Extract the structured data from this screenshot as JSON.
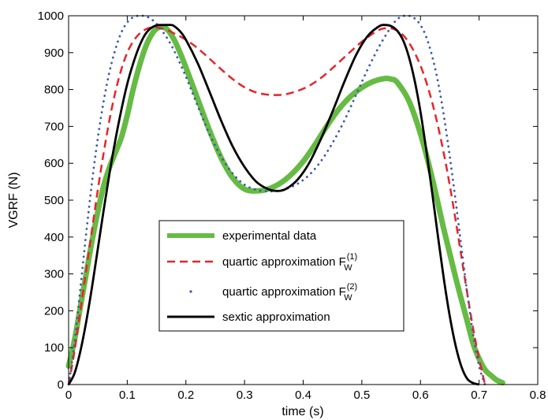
{
  "chart_data": {
    "type": "line",
    "title": "",
    "xlabel": "time (s)",
    "ylabel": "VGRF (N)",
    "xlim": [
      0,
      0.8
    ],
    "ylim": [
      0,
      1000
    ],
    "xticks": [
      "0",
      "0.1",
      "0.2",
      "0.3",
      "0.4",
      "0.5",
      "0.6",
      "0.7",
      "0.8"
    ],
    "yticks": [
      "0",
      "100",
      "200",
      "300",
      "400",
      "500",
      "600",
      "700",
      "800",
      "900",
      "1000"
    ],
    "grid": false,
    "legend_position": "center",
    "series": [
      {
        "name": "experimental data",
        "color": "#66bb44",
        "style": "thick-solid",
        "x": [
          0,
          0.01,
          0.02,
          0.03,
          0.04,
          0.05,
          0.06,
          0.07,
          0.08,
          0.09,
          0.1,
          0.11,
          0.12,
          0.13,
          0.14,
          0.15,
          0.16,
          0.17,
          0.18,
          0.19,
          0.2,
          0.22,
          0.24,
          0.26,
          0.28,
          0.3,
          0.32,
          0.34,
          0.36,
          0.38,
          0.4,
          0.42,
          0.44,
          0.46,
          0.48,
          0.5,
          0.52,
          0.54,
          0.55,
          0.56,
          0.58,
          0.6,
          0.62,
          0.64,
          0.66,
          0.68,
          0.69,
          0.7,
          0.71,
          0.72,
          0.73,
          0.74
        ],
        "y": [
          50,
          120,
          210,
          300,
          390,
          470,
          540,
          590,
          630,
          670,
          730,
          800,
          860,
          910,
          945,
          965,
          970,
          960,
          935,
          900,
          860,
          775,
          690,
          615,
          560,
          530,
          525,
          530,
          545,
          570,
          605,
          650,
          700,
          745,
          780,
          805,
          822,
          830,
          828,
          820,
          770,
          680,
          560,
          420,
          290,
          170,
          110,
          70,
          40,
          25,
          12,
          5
        ]
      },
      {
        "name": "quartic approximation F_W^(1)",
        "color": "#e8242b",
        "style": "dashed",
        "x": [
          0,
          0.01,
          0.02,
          0.03,
          0.04,
          0.05,
          0.06,
          0.07,
          0.08,
          0.09,
          0.1,
          0.11,
          0.12,
          0.13,
          0.14,
          0.15,
          0.16,
          0.17,
          0.18,
          0.2,
          0.22,
          0.24,
          0.26,
          0.28,
          0.3,
          0.32,
          0.34,
          0.355,
          0.37,
          0.39,
          0.41,
          0.43,
          0.45,
          0.47,
          0.49,
          0.51,
          0.53,
          0.54,
          0.55,
          0.56,
          0.57,
          0.58,
          0.59,
          0.6,
          0.61,
          0.62,
          0.63,
          0.64,
          0.65,
          0.66,
          0.67,
          0.68,
          0.69,
          0.7,
          0.71
        ],
        "y": [
          0,
          90,
          200,
          310,
          420,
          530,
          630,
          720,
          795,
          855,
          900,
          930,
          950,
          962,
          968,
          968,
          965,
          960,
          952,
          935,
          912,
          884,
          855,
          828,
          806,
          792,
          786,
          785,
          787,
          796,
          810,
          831,
          858,
          887,
          916,
          942,
          962,
          966,
          966,
          960,
          948,
          928,
          900,
          865,
          820,
          765,
          700,
          625,
          540,
          445,
          345,
          245,
          150,
          70,
          0
        ]
      },
      {
        "name": "quartic approximation F_W^(2)",
        "color": "#3a5aa8",
        "style": "dotted",
        "x": [
          0,
          0.01,
          0.02,
          0.03,
          0.04,
          0.05,
          0.06,
          0.07,
          0.08,
          0.09,
          0.1,
          0.11,
          0.12,
          0.13,
          0.14,
          0.15,
          0.16,
          0.17,
          0.18,
          0.2,
          0.22,
          0.24,
          0.26,
          0.28,
          0.3,
          0.32,
          0.34,
          0.355,
          0.37,
          0.39,
          0.41,
          0.43,
          0.45,
          0.47,
          0.49,
          0.51,
          0.53,
          0.55,
          0.56,
          0.57,
          0.58,
          0.59,
          0.6,
          0.61,
          0.62,
          0.63,
          0.64,
          0.65,
          0.66,
          0.67,
          0.68,
          0.69,
          0.7,
          0.71
        ],
        "y": [
          0,
          110,
          260,
          410,
          550,
          670,
          770,
          850,
          910,
          955,
          982,
          996,
          1000,
          999,
          992,
          978,
          958,
          934,
          905,
          835,
          756,
          680,
          618,
          572,
          542,
          528,
          524,
          525,
          530,
          544,
          568,
          605,
          655,
          715,
          785,
          855,
          918,
          970,
          990,
          999,
          1000,
          993,
          975,
          942,
          890,
          820,
          728,
          618,
          498,
          370,
          245,
          135,
          50,
          0
        ]
      },
      {
        "name": "sextic approximation",
        "color": "#000000",
        "style": "solid",
        "x": [
          0,
          0.01,
          0.02,
          0.03,
          0.04,
          0.05,
          0.06,
          0.07,
          0.08,
          0.09,
          0.1,
          0.11,
          0.12,
          0.13,
          0.14,
          0.15,
          0.16,
          0.17,
          0.175,
          0.18,
          0.19,
          0.2,
          0.22,
          0.24,
          0.26,
          0.28,
          0.3,
          0.32,
          0.34,
          0.355,
          0.37,
          0.39,
          0.41,
          0.43,
          0.45,
          0.47,
          0.49,
          0.51,
          0.53,
          0.54,
          0.55,
          0.56,
          0.57,
          0.58,
          0.59,
          0.6,
          0.61,
          0.62,
          0.63,
          0.64,
          0.65,
          0.66,
          0.67,
          0.68,
          0.69,
          0.7
        ],
        "y": [
          0,
          30,
          90,
          170,
          265,
          370,
          475,
          575,
          665,
          745,
          815,
          870,
          915,
          948,
          966,
          974,
          975,
          975,
          975,
          972,
          958,
          935,
          872,
          795,
          716,
          645,
          590,
          550,
          530,
          525,
          530,
          555,
          600,
          665,
          740,
          820,
          893,
          945,
          972,
          975,
          972,
          960,
          935,
          890,
          825,
          740,
          635,
          520,
          400,
          285,
          185,
          105,
          48,
          15,
          4,
          0
        ]
      }
    ]
  }
}
